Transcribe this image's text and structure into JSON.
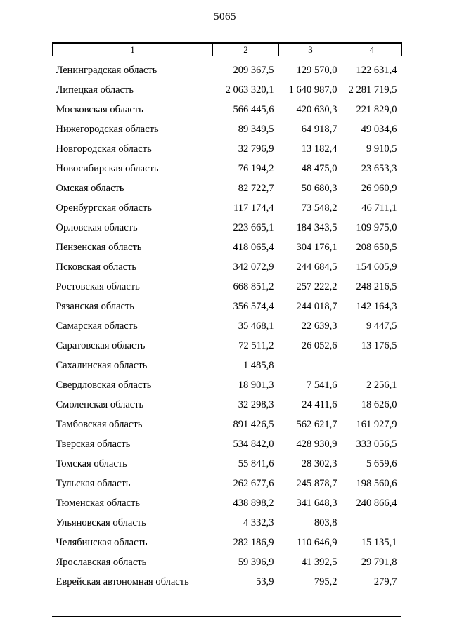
{
  "page": {
    "number": "5065"
  },
  "table": {
    "headers": [
      "1",
      "2",
      "3",
      "4"
    ],
    "rows": [
      {
        "name": "Ленинградская область",
        "values": [
          "209 367,5",
          "129 570,0",
          "122 631,4"
        ]
      },
      {
        "name": "Липецкая область",
        "values": [
          "2 063 320,1",
          "1 640 987,0",
          "2 281 719,5"
        ]
      },
      {
        "name": "Московская область",
        "values": [
          "566 445,6",
          "420 630,3",
          "221 829,0"
        ]
      },
      {
        "name": "Нижегородская область",
        "values": [
          "89 349,5",
          "64 918,7",
          "49 034,6"
        ]
      },
      {
        "name": "Новгородская область",
        "values": [
          "32 796,9",
          "13 182,4",
          "9 910,5"
        ]
      },
      {
        "name": "Новосибирская область",
        "values": [
          "76 194,2",
          "48 475,0",
          "23 653,3"
        ]
      },
      {
        "name": "Омская область",
        "values": [
          "82 722,7",
          "50 680,3",
          "26 960,9"
        ]
      },
      {
        "name": "Оренбургская область",
        "values": [
          "117 174,4",
          "73 548,2",
          "46 711,1"
        ]
      },
      {
        "name": "Орловская область",
        "values": [
          "223 665,1",
          "184 343,5",
          "109 975,0"
        ]
      },
      {
        "name": "Пензенская область",
        "values": [
          "418 065,4",
          "304 176,1",
          "208 650,5"
        ]
      },
      {
        "name": "Псковская область",
        "values": [
          "342 072,9",
          "244 684,5",
          "154 605,9"
        ]
      },
      {
        "name": "Ростовская область",
        "values": [
          "668 851,2",
          "257 222,2",
          "248 216,5"
        ]
      },
      {
        "name": "Рязанская область",
        "values": [
          "356 574,4",
          "244 018,7",
          "142 164,3"
        ]
      },
      {
        "name": "Самарская область",
        "values": [
          "35 468,1",
          "22 639,3",
          "9 447,5"
        ]
      },
      {
        "name": "Саратовская область",
        "values": [
          "72 511,2",
          "26 052,6",
          "13 176,5"
        ]
      },
      {
        "name": "Сахалинская область",
        "values": [
          "1 485,8",
          "",
          ""
        ]
      },
      {
        "name": "Свердловская область",
        "values": [
          "18 901,3",
          "7 541,6",
          "2 256,1"
        ]
      },
      {
        "name": "Смоленская область",
        "values": [
          "32 298,3",
          "24 411,6",
          "18 626,0"
        ]
      },
      {
        "name": "Тамбовская область",
        "values": [
          "891 426,5",
          "562 621,7",
          "161 927,9"
        ]
      },
      {
        "name": "Тверская область",
        "values": [
          "534 842,0",
          "428 930,9",
          "333 056,5"
        ]
      },
      {
        "name": "Томская область",
        "values": [
          "55 841,6",
          "28 302,3",
          "5 659,6"
        ]
      },
      {
        "name": "Тульская область",
        "values": [
          "262 677,6",
          "245 878,7",
          "198 560,6"
        ]
      },
      {
        "name": "Тюменская область",
        "values": [
          "438 898,2",
          "341 648,3",
          "240 866,4"
        ]
      },
      {
        "name": "Ульяновская область",
        "values": [
          "4 332,3",
          "803,8",
          ""
        ]
      },
      {
        "name": "Челябинская область",
        "values": [
          "282 186,9",
          "110 646,9",
          "15 135,1"
        ]
      },
      {
        "name": "Ярославская область",
        "values": [
          "59 396,9",
          "41 392,5",
          "29 791,8"
        ]
      },
      {
        "name": "Еврейская автономная область",
        "values": [
          "53,9",
          "795,2",
          "279,7"
        ]
      }
    ]
  }
}
